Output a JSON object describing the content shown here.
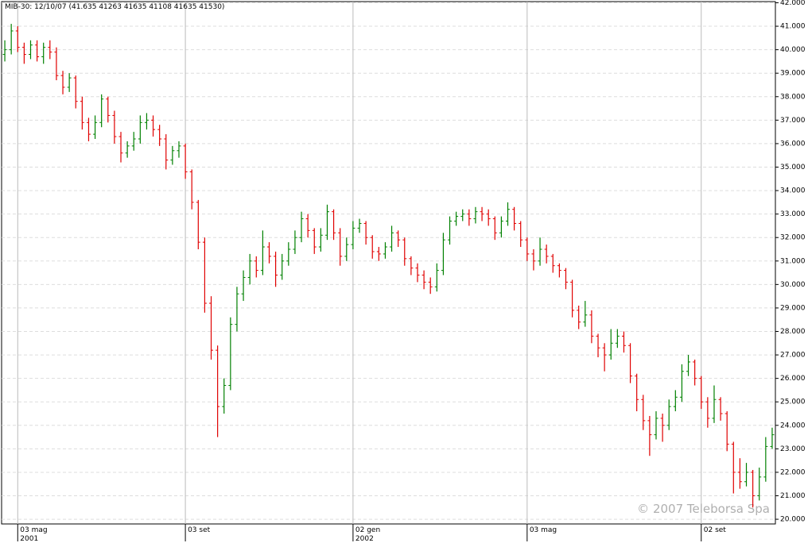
{
  "chart_data": {
    "type": "ohlc",
    "title": "MIB-30: 12/10/07 (41.635  41263  41635  41108  41635  41530)",
    "watermark": "© 2007 Teleborsa Spa",
    "up_color": "#008000",
    "down_color": "#e00000",
    "categories": [
      null,
      null,
      "03 mag",
      null,
      null,
      null,
      null,
      null,
      null,
      null,
      null,
      null,
      null,
      null,
      null,
      null,
      null,
      null,
      null,
      null,
      null,
      null,
      null,
      null,
      null,
      null,
      null,
      null,
      "03 set",
      null,
      null,
      null,
      null,
      null,
      null,
      null,
      null,
      null,
      null,
      null,
      null,
      null,
      null,
      null,
      null,
      null,
      null,
      null,
      null,
      null,
      null,
      null,
      null,
      null,
      "02 gen",
      null,
      null,
      null,
      null,
      null,
      null,
      null,
      null,
      null,
      null,
      null,
      null,
      null,
      null,
      null,
      null,
      null,
      null,
      null,
      null,
      null,
      null,
      null,
      null,
      null,
      null,
      "03 mag",
      null,
      null,
      null,
      null,
      null,
      null,
      null,
      null,
      null,
      null,
      null,
      null,
      null,
      null,
      null,
      null,
      null,
      null,
      null,
      null,
      null,
      null,
      null,
      null,
      null,
      null,
      "02 set",
      null,
      null,
      null,
      null,
      null,
      null,
      null,
      null,
      null,
      null,
      null
    ],
    "years": [
      null,
      null,
      "2001",
      null,
      null,
      null,
      null,
      null,
      null,
      null,
      null,
      null,
      null,
      null,
      null,
      null,
      null,
      null,
      null,
      null,
      null,
      null,
      null,
      null,
      null,
      null,
      null,
      null,
      null,
      null,
      null,
      null,
      null,
      null,
      null,
      null,
      null,
      null,
      null,
      null,
      null,
      null,
      null,
      null,
      null,
      null,
      null,
      null,
      null,
      null,
      null,
      null,
      null,
      null,
      "2002",
      null,
      null,
      null,
      null,
      null,
      null,
      null,
      null,
      null,
      null,
      null,
      null,
      null,
      null,
      null,
      null,
      null,
      null,
      null,
      null,
      null,
      null,
      null,
      null,
      null,
      null,
      null,
      null,
      null,
      null,
      null,
      null,
      null,
      null,
      null,
      null,
      null,
      null,
      null,
      null,
      null,
      null,
      null,
      null,
      null,
      null,
      null,
      null,
      null,
      null,
      null,
      null,
      null,
      null,
      null,
      null,
      null,
      null,
      null,
      null,
      null,
      null,
      null,
      null,
      null,
      null
    ],
    "open": [
      39800,
      40000,
      40800,
      40100,
      39800,
      40200,
      39700,
      40100,
      39900,
      38900,
      38400,
      38800,
      37800,
      36900,
      36400,
      36900,
      37900,
      37200,
      36300,
      35600,
      35900,
      36200,
      36900,
      37000,
      36600,
      36200,
      35300,
      35700,
      35900,
      34800,
      33500,
      31800,
      29200,
      27200,
      24800,
      25700,
      28300,
      29600,
      30300,
      31000,
      30600,
      31600,
      31200,
      30400,
      31000,
      31500,
      32000,
      32800,
      32300,
      31600,
      32100,
      33100,
      32200,
      31200,
      31700,
      32400,
      32600,
      32000,
      31400,
      31300,
      31600,
      32200,
      31900,
      31100,
      30700,
      30400,
      30100,
      29900,
      30600,
      31900,
      32700,
      32900,
      33000,
      32800,
      33100,
      33000,
      32800,
      32200,
      32700,
      33200,
      32600,
      31900,
      31300,
      31000,
      31500,
      31200,
      30800,
      30600,
      30100,
      28900,
      28400,
      28700,
      27800,
      27300,
      27000,
      27500,
      27800,
      27400,
      26100,
      25100,
      24200,
      23600,
      24300,
      24000,
      24800,
      25200,
      26300,
      26700,
      26000,
      25000,
      24300,
      25100,
      24500,
      23200,
      22000,
      21600,
      22000,
      21000,
      21800,
      23100
    ],
    "high": [
      40400,
      41100,
      41000,
      40300,
      40400,
      40400,
      40300,
      40400,
      40100,
      39100,
      39000,
      38900,
      38000,
      37100,
      37200,
      38100,
      38000,
      37400,
      36500,
      36100,
      36500,
      37200,
      37300,
      37200,
      36800,
      36400,
      35900,
      36100,
      36000,
      34900,
      33600,
      32000,
      29500,
      27400,
      26000,
      28600,
      29900,
      30600,
      31300,
      31200,
      32300,
      31800,
      31400,
      31300,
      31800,
      32300,
      33100,
      33000,
      32400,
      32400,
      33400,
      33200,
      32400,
      32000,
      32700,
      32800,
      32700,
      32100,
      31600,
      31800,
      32500,
      32300,
      32000,
      31200,
      30900,
      30600,
      30300,
      30900,
      32200,
      32900,
      33100,
      33200,
      33200,
      33300,
      33300,
      33200,
      32900,
      32900,
      33500,
      33300,
      32700,
      32000,
      31500,
      32000,
      31700,
      31300,
      30900,
      30700,
      30200,
      29100,
      29300,
      28900,
      27900,
      27500,
      28100,
      28100,
      28000,
      27500,
      26200,
      25300,
      24400,
      24600,
      24500,
      25100,
      25500,
      26600,
      27000,
      26800,
      26100,
      25200,
      25700,
      25200,
      24600,
      23300,
      22600,
      22400,
      22100,
      22200,
      23500,
      23900
    ],
    "low": [
      39500,
      39800,
      39900,
      39400,
      39600,
      39500,
      39400,
      39600,
      38700,
      38100,
      38200,
      37500,
      36600,
      36100,
      36200,
      36700,
      36900,
      36000,
      35200,
      35400,
      35700,
      36000,
      36600,
      36300,
      35900,
      34900,
      35100,
      35400,
      34500,
      33200,
      31500,
      28800,
      26800,
      23500,
      24500,
      25500,
      28000,
      29300,
      30000,
      30300,
      30400,
      30900,
      29900,
      30200,
      30800,
      31300,
      31800,
      32000,
      31300,
      31400,
      31900,
      31900,
      30800,
      31000,
      31500,
      32200,
      31700,
      31100,
      31000,
      31100,
      31400,
      31600,
      30800,
      30400,
      30100,
      29800,
      29600,
      29700,
      30400,
      31700,
      32500,
      32700,
      32500,
      32600,
      32700,
      32500,
      31900,
      32000,
      32500,
      32300,
      31600,
      31000,
      30600,
      30800,
      30900,
      30500,
      30300,
      29800,
      28600,
      28100,
      28200,
      27500,
      26900,
      26300,
      26800,
      27300,
      27100,
      25800,
      24600,
      23800,
      22700,
      23400,
      23300,
      23800,
      24600,
      25000,
      26100,
      25700,
      24700,
      23900,
      24100,
      24200,
      22900,
      21100,
      21300,
      21400,
      20500,
      20800,
      21600,
      23000
    ],
    "close": [
      40000,
      40800,
      40100,
      39800,
      40200,
      39700,
      40100,
      39900,
      38900,
      38400,
      38800,
      37800,
      36900,
      36400,
      36900,
      37900,
      37200,
      36300,
      35600,
      35900,
      36200,
      36900,
      37000,
      36600,
      36200,
      35300,
      35700,
      35900,
      34800,
      33500,
      31800,
      29200,
      27200,
      24800,
      25700,
      28300,
      29600,
      30300,
      31000,
      30600,
      31600,
      31200,
      30400,
      31000,
      31500,
      32000,
      32800,
      32300,
      31600,
      32100,
      33100,
      32200,
      31200,
      31700,
      32400,
      32600,
      32000,
      31400,
      31300,
      31600,
      32200,
      31900,
      31100,
      30700,
      30400,
      30100,
      29900,
      30600,
      31900,
      32700,
      32900,
      33000,
      32800,
      33100,
      33000,
      32800,
      32200,
      32700,
      33200,
      32600,
      31900,
      31300,
      31000,
      31500,
      31200,
      30800,
      30600,
      30100,
      28900,
      28400,
      28700,
      27800,
      27300,
      27000,
      27500,
      27800,
      27400,
      26100,
      25100,
      24200,
      23600,
      24300,
      24000,
      24800,
      25200,
      26300,
      26700,
      26000,
      25000,
      24300,
      25100,
      24500,
      23200,
      22000,
      21600,
      22000,
      21000,
      21800,
      23100,
      23600
    ],
    "ylim": [
      19800,
      42050
    ],
    "yticks": [
      {
        "value": 20000,
        "label": "20.000"
      },
      {
        "value": 21000,
        "label": "21.000"
      },
      {
        "value": 22000,
        "label": "22.000"
      },
      {
        "value": 23000,
        "label": "23.000"
      },
      {
        "value": 24000,
        "label": "24.000"
      },
      {
        "value": 25000,
        "label": "25.000"
      },
      {
        "value": 26000,
        "label": "26.000"
      },
      {
        "value": 27000,
        "label": "27.000"
      },
      {
        "value": 28000,
        "label": "28.000"
      },
      {
        "value": 29000,
        "label": "29.000"
      },
      {
        "value": 30000,
        "label": "30.000"
      },
      {
        "value": 31000,
        "label": "31.000"
      },
      {
        "value": 32000,
        "label": "32.000"
      },
      {
        "value": 33000,
        "label": "33.000"
      },
      {
        "value": 34000,
        "label": "34.000"
      },
      {
        "value": 35000,
        "label": "35.000"
      },
      {
        "value": 36000,
        "label": "36.000"
      },
      {
        "value": 37000,
        "label": "37.000"
      },
      {
        "value": 38000,
        "label": "38.000"
      },
      {
        "value": 39000,
        "label": "39.000"
      },
      {
        "value": 40000,
        "label": "40.000"
      },
      {
        "value": 41000,
        "label": "41.000"
      },
      {
        "value": 42000,
        "label": "42.000"
      }
    ],
    "grid": true
  }
}
